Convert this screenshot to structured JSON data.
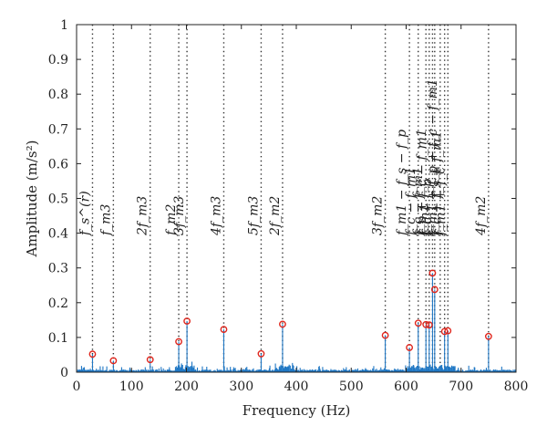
{
  "chart_data": {
    "type": "line",
    "xlabel": "Frequency (Hz)",
    "ylabel": "Amplitude (m/s²)",
    "xlim": [
      0,
      800
    ],
    "ylim": [
      0,
      1
    ],
    "xticks": [
      0,
      100,
      200,
      300,
      400,
      500,
      600,
      700,
      800
    ],
    "yticks": [
      0,
      0.1,
      0.2,
      0.3,
      0.4,
      0.5,
      0.6,
      0.7,
      0.8,
      0.9,
      1
    ],
    "xtick_labels": [
      "0",
      "100",
      "200",
      "300",
      "400",
      "500",
      "600",
      "700",
      "800"
    ],
    "ytick_labels": [
      "0",
      "0.1",
      "0.2",
      "0.3",
      "0.4",
      "0.5",
      "0.6",
      "0.7",
      "0.8",
      "0.9",
      "1"
    ],
    "grid": false,
    "line_color": "#1f77c4",
    "marker_color": "#e0261d",
    "peaks": [
      {
        "x": 29,
        "y": 0.052
      },
      {
        "x": 67,
        "y": 0.033
      },
      {
        "x": 134,
        "y": 0.036
      },
      {
        "x": 186,
        "y": 0.088
      },
      {
        "x": 201,
        "y": 0.147
      },
      {
        "x": 268,
        "y": 0.123
      },
      {
        "x": 336,
        "y": 0.053
      },
      {
        "x": 375,
        "y": 0.138
      },
      {
        "x": 562,
        "y": 0.106
      },
      {
        "x": 606,
        "y": 0.071
      },
      {
        "x": 622,
        "y": 0.141
      },
      {
        "x": 636,
        "y": 0.137
      },
      {
        "x": 642,
        "y": 0.136
      },
      {
        "x": 648,
        "y": 0.285
      },
      {
        "x": 652,
        "y": 0.238
      },
      {
        "x": 670,
        "y": 0.117
      },
      {
        "x": 676,
        "y": 0.119
      },
      {
        "x": 750,
        "y": 0.103
      }
    ],
    "annotations": [
      {
        "x": 29,
        "label": "f_s^(r)"
      },
      {
        "x": 67,
        "label": "f_m3"
      },
      {
        "x": 134,
        "label": "2f_m3"
      },
      {
        "x": 186,
        "label": "f_m2"
      },
      {
        "x": 201,
        "label": "3f_m3"
      },
      {
        "x": 268,
        "label": "4f_m3"
      },
      {
        "x": 336,
        "label": "5f_m3"
      },
      {
        "x": 375,
        "label": "2f_m2"
      },
      {
        "x": 562,
        "label": "3f_m2"
      },
      {
        "x": 606,
        "label": "f_m1 − f_s − f_p"
      },
      {
        "x": 622,
        "label": "f_c − f_m1"
      },
      {
        "x": 636,
        "label": "f_c − f_m1"
      },
      {
        "x": 642,
        "label": "f_p + f_c − f_m1"
      },
      {
        "x": 648,
        "label": "f_m1"
      },
      {
        "x": 652,
        "label": "f_c − f_p"
      },
      {
        "x": 662,
        "label": "f_m1 + f_p + f_c − f_m1"
      },
      {
        "x": 670,
        "label": "f_c + f_s + f_m1"
      },
      {
        "x": 676,
        "label": "f_m1 + f_c"
      },
      {
        "x": 750,
        "label": "4f_m2"
      }
    ]
  }
}
